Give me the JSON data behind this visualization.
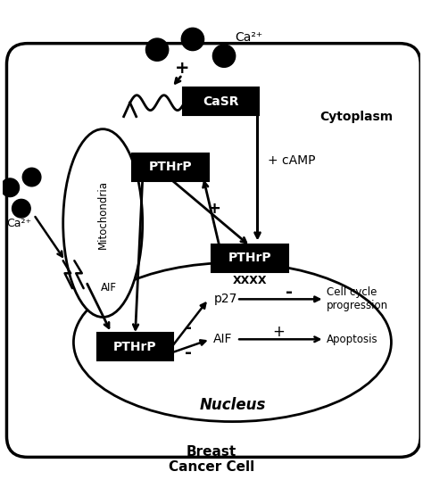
{
  "fig_width": 4.74,
  "fig_height": 5.47,
  "dpi": 100,
  "bg_color": "#ffffff",
  "title": "Breast\nCancer Cell",
  "title_fontsize": 11,
  "title_fontweight": "bold",
  "cytoplasm_label": "Cytoplasm",
  "nucleus_label": "Nucleus",
  "mitochondria_label": "Mitochondria",
  "casr_label": "CaSR",
  "pthrp_label": "PTHrP",
  "camp_label": "+ cAMP",
  "ca2plus_label": "Ca²⁺",
  "aif_mito_label": "AIF",
  "aif_nuc_label": "AIF",
  "p27_label": "p27",
  "cell_cycle_label": "Cell cycle\nprogression",
  "apoptosis_label": "Apoptosis",
  "plus_sign": "+",
  "minus_sign": "-",
  "xxxx_label": "XXXX"
}
